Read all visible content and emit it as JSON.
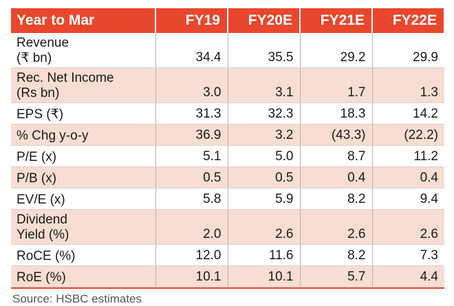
{
  "chart_data": {
    "type": "table",
    "header": [
      "Year to Mar",
      "FY19",
      "FY20E",
      "FY21E",
      "FY22E"
    ],
    "rows": [
      {
        "label": [
          "Revenue",
          "(₹ bn)"
        ],
        "values": [
          "34.4",
          "35.5",
          "29.2",
          "29.9"
        ],
        "shaded": false
      },
      {
        "label": [
          "Rec. Net Income",
          "(Rs bn)"
        ],
        "values": [
          "3.0",
          "3.1",
          "1.7",
          "1.3"
        ],
        "shaded": true
      },
      {
        "label": [
          "EPS (₹)"
        ],
        "values": [
          "31.3",
          "32.3",
          "18.3",
          "14.2"
        ],
        "shaded": false
      },
      {
        "label": [
          "% Chg y-o-y"
        ],
        "values": [
          "36.9",
          "3.2",
          "(43.3)",
          "(22.2)"
        ],
        "shaded": true
      },
      {
        "label": [
          "P/E (x)"
        ],
        "values": [
          "5.1",
          "5.0",
          "8.7",
          "11.2"
        ],
        "shaded": false
      },
      {
        "label": [
          "P/B (x)"
        ],
        "values": [
          "0.5",
          "0.5",
          "0.4",
          "0.4"
        ],
        "shaded": true
      },
      {
        "label": [
          "EV/E (x)"
        ],
        "values": [
          "5.8",
          "5.9",
          "8.2",
          "9.4"
        ],
        "shaded": false
      },
      {
        "label": [
          "Dividend",
          "Yield (%)"
        ],
        "values": [
          "2.0",
          "2.6",
          "2.6",
          "2.6"
        ],
        "shaded": true
      },
      {
        "label": [
          "RoCE (%)"
        ],
        "values": [
          "12.0",
          "11.6",
          "8.2",
          "7.3"
        ],
        "shaded": false
      },
      {
        "label": [
          "RoE (%)"
        ],
        "values": [
          "10.1",
          "10.1",
          "5.7",
          "4.4"
        ],
        "shaded": true
      }
    ],
    "source": "Source: HSBC estimates"
  },
  "colors": {
    "header_bg": "#e8472e",
    "header_text": "#ffffff",
    "shaded_row": "#f7ddd3",
    "plain_row": "#ffffff"
  }
}
